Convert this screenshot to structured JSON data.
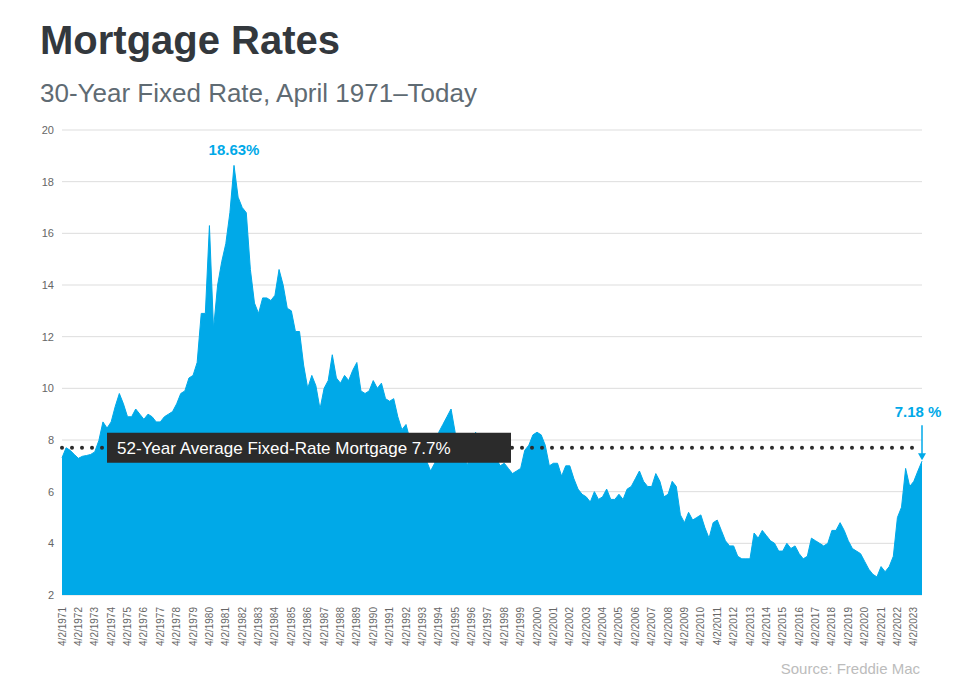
{
  "chart_data": {
    "type": "area",
    "title": "Mortgage Rates",
    "subtitle": "30-Year Fixed Rate, April 1971–Today",
    "source": "Source: Freddie Mac",
    "color": "#00A9E8",
    "grid": true,
    "ylim": [
      2,
      20
    ],
    "yticks": [
      2,
      4,
      6,
      8,
      10,
      12,
      14,
      16,
      18,
      20
    ],
    "categories": [
      "4/2/1971",
      null,
      null,
      null,
      "4/2/1972",
      null,
      null,
      null,
      "4/2/1973",
      null,
      null,
      null,
      "4/2/1974",
      null,
      null,
      null,
      "4/2/1975",
      null,
      null,
      null,
      "4/2/1976",
      null,
      null,
      null,
      "4/2/1977",
      null,
      null,
      null,
      "4/2/1978",
      null,
      null,
      null,
      "4/2/1979",
      null,
      null,
      null,
      "4/2/1980",
      null,
      null,
      null,
      "4/2/1981",
      null,
      null,
      null,
      "4/2/1982",
      null,
      null,
      null,
      "4/2/1983",
      null,
      null,
      null,
      "4/2/1984",
      null,
      null,
      null,
      "4/2/1985",
      null,
      null,
      null,
      "4/2/1986",
      null,
      null,
      null,
      "4/2/1987",
      null,
      null,
      null,
      "4/2/1988",
      null,
      null,
      null,
      "4/2/1989",
      null,
      null,
      null,
      "4/2/1990",
      null,
      null,
      null,
      "4/2/1991",
      null,
      null,
      null,
      "4/2/1992",
      null,
      null,
      null,
      "4/2/1993",
      null,
      null,
      null,
      "4/2/1994",
      null,
      null,
      null,
      "4/2/1995",
      null,
      null,
      null,
      "4/2/1996",
      null,
      null,
      null,
      "4/2/1997",
      null,
      null,
      null,
      "4/2/1998",
      null,
      null,
      null,
      "4/2/1999",
      null,
      null,
      null,
      "4/2/2000",
      null,
      null,
      null,
      "4/2/2001",
      null,
      null,
      null,
      "4/2/2002",
      null,
      null,
      null,
      "4/2/2003",
      null,
      null,
      null,
      "4/2/2004",
      null,
      null,
      null,
      "4/2/2005",
      null,
      null,
      null,
      "4/2/2006",
      null,
      null,
      null,
      "4/2/2007",
      null,
      null,
      null,
      "4/2/2008",
      null,
      null,
      null,
      "4/2/2009",
      null,
      null,
      null,
      "4/2/2010",
      null,
      null,
      null,
      "4/2/2011",
      null,
      null,
      null,
      "4/2/2012",
      null,
      null,
      null,
      "4/2/2013",
      null,
      null,
      null,
      "4/2/2014",
      null,
      null,
      null,
      "4/2/2015",
      null,
      null,
      null,
      "4/2/2016",
      null,
      null,
      null,
      "4/2/2017",
      null,
      null,
      null,
      "4/2/2018",
      null,
      null,
      null,
      "4/2/2019",
      null,
      null,
      null,
      "4/2/2020",
      null,
      null,
      null,
      "4/2/2021",
      null,
      null,
      null,
      "4/2/2022",
      null,
      null,
      null,
      "4/2/2023",
      null,
      null
    ],
    "values": [
      7.31,
      7.7,
      7.6,
      7.44,
      7.29,
      7.37,
      7.4,
      7.44,
      7.54,
      7.98,
      8.7,
      8.46,
      8.7,
      9.3,
      9.8,
      9.4,
      8.9,
      8.9,
      9.2,
      9.0,
      8.8,
      9.0,
      8.9,
      8.7,
      8.7,
      8.9,
      9.0,
      9.1,
      9.4,
      9.8,
      9.9,
      10.4,
      10.5,
      11.0,
      12.9,
      12.9,
      16.3,
      12.3,
      14.0,
      14.9,
      15.6,
      16.8,
      18.63,
      17.4,
      17.0,
      16.8,
      14.6,
      13.3,
      12.9,
      13.5,
      13.5,
      13.4,
      13.6,
      14.6,
      14.0,
      13.1,
      13.0,
      12.2,
      12.2,
      10.9,
      10.0,
      10.5,
      10.1,
      9.2,
      10.0,
      10.3,
      11.3,
      10.4,
      10.2,
      10.5,
      10.3,
      10.7,
      11.0,
      9.9,
      9.8,
      9.9,
      10.3,
      10.0,
      10.2,
      9.6,
      9.5,
      9.6,
      8.9,
      8.4,
      8.6,
      8.0,
      8.1,
      7.9,
      7.5,
      7.2,
      6.8,
      7.1,
      8.3,
      8.6,
      8.9,
      9.2,
      8.3,
      7.6,
      7.5,
      7.0,
      7.9,
      8.3,
      7.9,
      7.8,
      8.1,
      7.5,
      7.3,
      7.0,
      7.1,
      6.9,
      6.7,
      6.8,
      6.9,
      7.6,
      7.8,
      8.2,
      8.3,
      8.2,
      7.8,
      7.0,
      7.1,
      7.1,
      6.6,
      7.0,
      7.0,
      6.5,
      6.1,
      5.9,
      5.8,
      5.6,
      6.0,
      5.7,
      5.8,
      6.1,
      5.7,
      5.7,
      5.9,
      5.7,
      6.1,
      6.2,
      6.5,
      6.8,
      6.4,
      6.2,
      6.2,
      6.7,
      6.4,
      5.8,
      5.9,
      6.4,
      6.2,
      5.1,
      4.8,
      5.2,
      4.9,
      5.0,
      5.1,
      4.6,
      4.2,
      4.8,
      4.9,
      4.5,
      4.1,
      3.9,
      3.9,
      3.5,
      3.4,
      3.4,
      3.4,
      4.4,
      4.2,
      4.5,
      4.3,
      4.1,
      4.0,
      3.7,
      3.7,
      4.0,
      3.8,
      3.9,
      3.6,
      3.4,
      3.5,
      4.2,
      4.1,
      4.0,
      3.9,
      4.0,
      4.5,
      4.5,
      4.8,
      4.5,
      4.1,
      3.8,
      3.7,
      3.6,
      3.3,
      3.0,
      2.8,
      2.7,
      3.1,
      2.9,
      3.1,
      3.5,
      5.0,
      5.4,
      6.9,
      6.2,
      6.4,
      6.8,
      7.18
    ],
    "reference_line": {
      "value": 7.7,
      "label": "52-Year Average Fixed-Rate Mortgage 7.7%",
      "line_style": "dotted"
    },
    "annotations": [
      {
        "text": "18.63%",
        "value": 18.63
      },
      {
        "text": "7.18 %",
        "value": 7.18
      }
    ]
  }
}
